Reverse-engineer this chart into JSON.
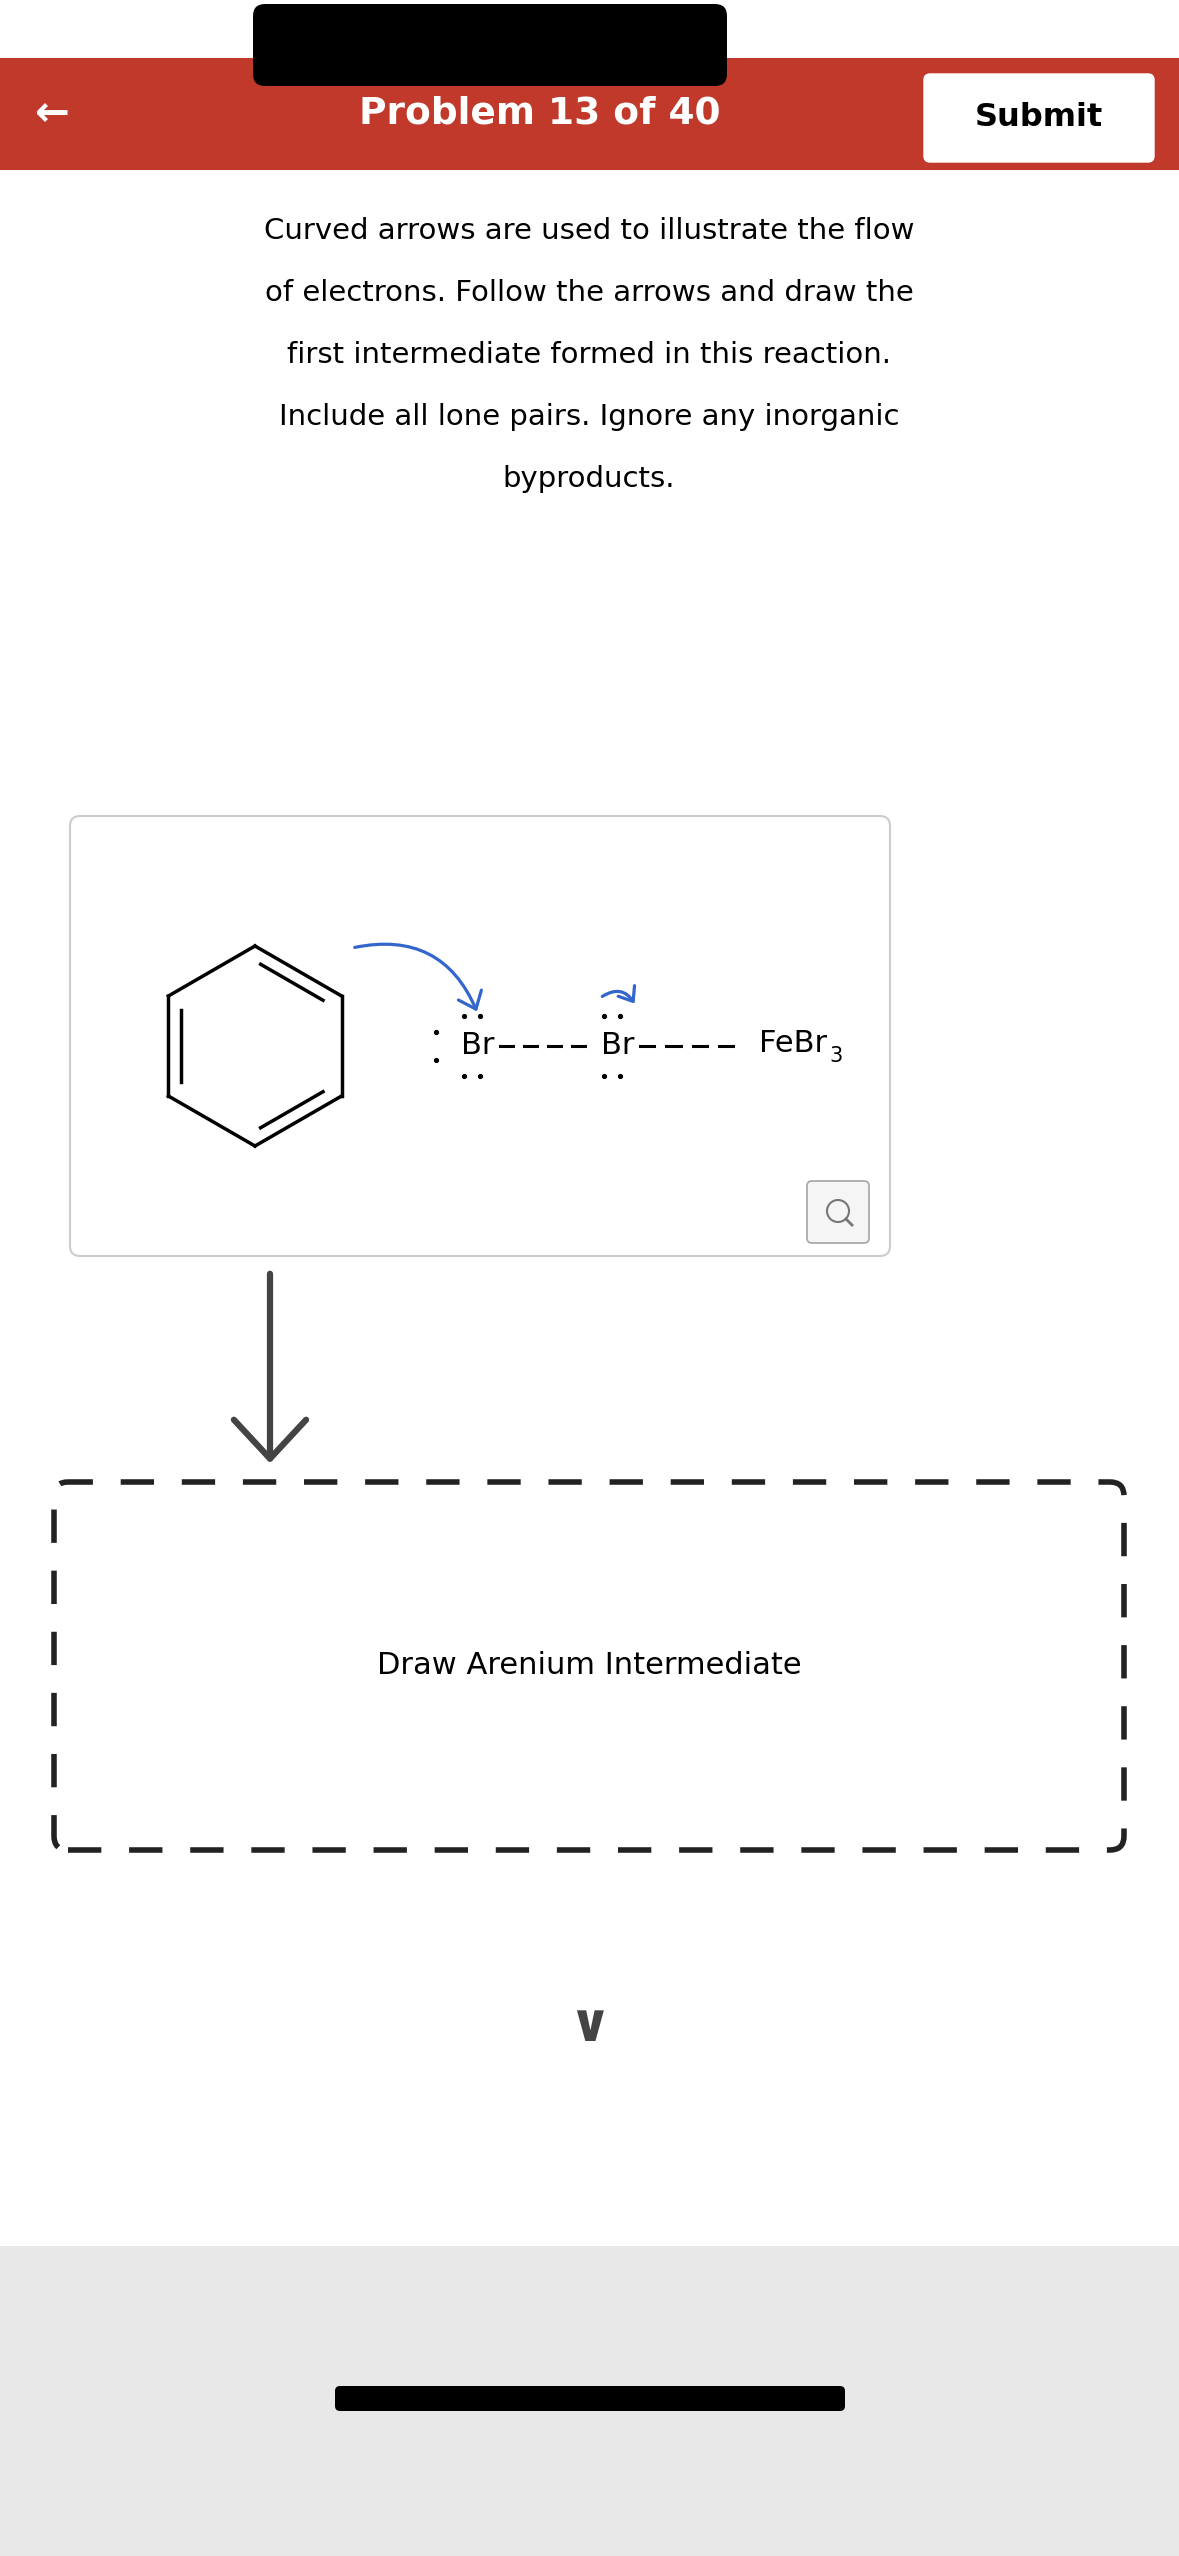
{
  "bg_color": "#ffffff",
  "bottom_bg_color": "#e8e8e8",
  "header_bar_color": "#c0392b",
  "header_text": "Problem 13 of 40",
  "header_text_color": "#ffffff",
  "submit_text": "Submit",
  "back_arrow": "←",
  "instruction_line1": "Curved arrows are used to illustrate the flow",
  "instruction_line2": "of electrons. Follow the arrows and draw the",
  "instruction_line3": "first intermediate formed in this reaction.",
  "instruction_line4": "Include all lone pairs. Ignore any inorganic",
  "instruction_line5": "byproducts.",
  "draw_label": "Draw Arenium Intermediate",
  "arrow_color": "#3366cc",
  "dashed_box_color": "#222222",
  "down_arrow_color": "#444444"
}
